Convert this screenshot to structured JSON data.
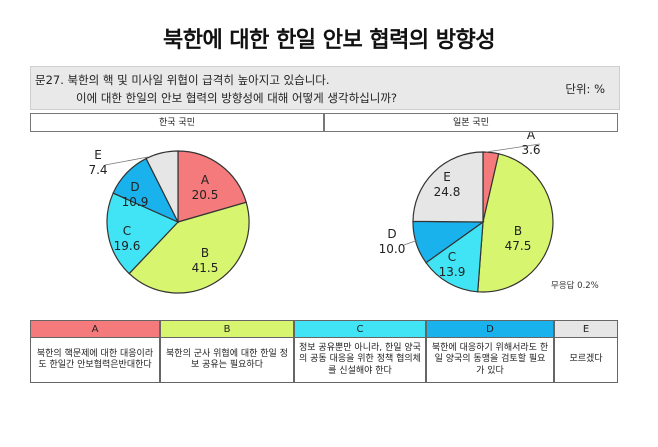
{
  "title": "북한에 대한 한일 안보 협력의 방향성",
  "question": {
    "line1": "문27. 북한의 핵 및 미사일 위협이 급격히 높아지고 있습니다.",
    "line2": "이에 대한 한일의 안보 협력의 방향성에 대해 어떻게 생각하십니까?",
    "unit": "단위: %"
  },
  "colors": {
    "A": "#f47a7c",
    "B": "#d8f56f",
    "C": "#41e4f4",
    "D": "#1ab2ec",
    "E": "#e6e6e6"
  },
  "chart_data": [
    {
      "type": "pie",
      "title": "한국 국민",
      "categories": [
        "A",
        "B",
        "C",
        "D",
        "E"
      ],
      "values": [
        20.5,
        41.5,
        19.6,
        10.9,
        7.4
      ]
    },
    {
      "type": "pie",
      "title": "일본 국민",
      "categories": [
        "A",
        "B",
        "C",
        "D",
        "E"
      ],
      "values": [
        3.6,
        47.5,
        13.9,
        10.0,
        24.8
      ]
    }
  ],
  "note": "무응답 0.2%",
  "legend": [
    {
      "key": "A",
      "text": "북한의 핵문제에 대한 대응이라도 한일간 안보협력은반대한다"
    },
    {
      "key": "B",
      "text": "북한의 군사 위협에 대한 한일 정보 공유는 필요하다"
    },
    {
      "key": "C",
      "text": "정보 공유뿐만 아니라, 한일 양국의 공동 대응을 위한 정책 협의체를 신설해야 한다"
    },
    {
      "key": "D",
      "text": "북한에 대응하기 위해서라도 한일 양국의 동맹을 검토할 필요가 있다"
    },
    {
      "key": "E",
      "text": "모르겠다"
    }
  ]
}
